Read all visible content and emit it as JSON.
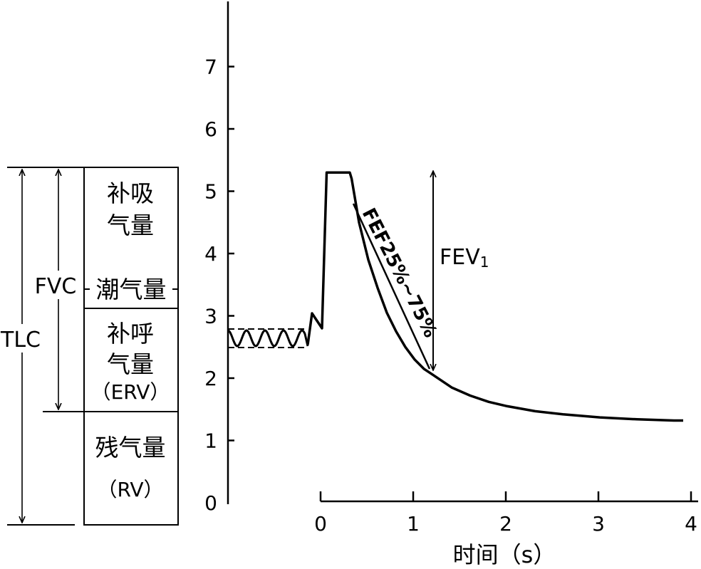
{
  "left_panel": {
    "tlc_label": "TLC",
    "fvc_label": "FVC",
    "boxes": [
      {
        "id": "irv",
        "line1": "补吸",
        "line2": "气量"
      },
      {
        "id": "vt",
        "line1": "潮气量"
      },
      {
        "id": "erv",
        "line1": "补呼",
        "line2": "气量",
        "line3": "（ERV）"
      },
      {
        "id": "rv",
        "line1": "残气量",
        "line2": "（RV）"
      }
    ]
  },
  "chart_data": {
    "type": "line",
    "xlabel": "时间（s）",
    "ylabel": "",
    "x_ticks": [
      "0",
      "1",
      "2",
      "3",
      "4"
    ],
    "y_ticks": [
      "0",
      "1",
      "2",
      "3",
      "4",
      "5",
      "6",
      "7"
    ],
    "xlim": [
      0,
      4
    ],
    "ylim": [
      0,
      7
    ],
    "series": [
      {
        "x": [
          0.0,
          0.05,
          0.1,
          0.15,
          0.2,
          0.25,
          0.3,
          0.32,
          0.4,
          0.5,
          0.6,
          0.7,
          0.8,
          0.9,
          1.0,
          1.1,
          1.2,
          1.4,
          1.6,
          1.8,
          2.0,
          2.3,
          2.6,
          3.0,
          3.4,
          3.8,
          3.9
        ],
        "y": [
          2.8,
          5.3,
          5.3,
          5.3,
          5.3,
          5.3,
          5.3,
          5.2,
          4.5,
          3.9,
          3.45,
          3.05,
          2.75,
          2.5,
          2.3,
          2.15,
          2.05,
          1.85,
          1.72,
          1.62,
          1.55,
          1.47,
          1.42,
          1.37,
          1.34,
          1.32,
          1.32
        ]
      }
    ],
    "annotations": [
      {
        "text": "FEF25%~75%"
      },
      {
        "text": "FEV",
        "subscript": "1"
      }
    ]
  }
}
